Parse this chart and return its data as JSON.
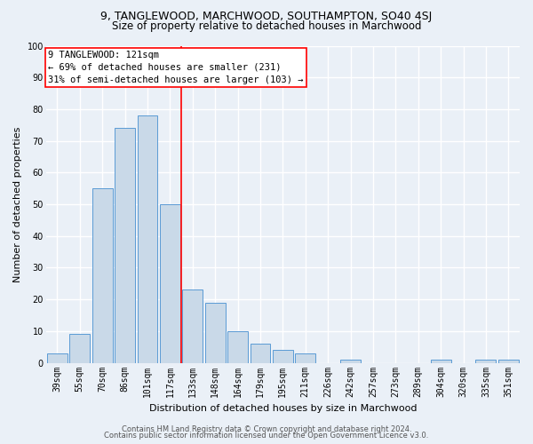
{
  "title1": "9, TANGLEWOOD, MARCHWOOD, SOUTHAMPTON, SO40 4SJ",
  "title2": "Size of property relative to detached houses in Marchwood",
  "xlabel": "Distribution of detached houses by size in Marchwood",
  "ylabel": "Number of detached properties",
  "categories": [
    "39sqm",
    "55sqm",
    "70sqm",
    "86sqm",
    "101sqm",
    "117sqm",
    "133sqm",
    "148sqm",
    "164sqm",
    "179sqm",
    "195sqm",
    "211sqm",
    "226sqm",
    "242sqm",
    "257sqm",
    "273sqm",
    "289sqm",
    "304sqm",
    "320sqm",
    "335sqm",
    "351sqm"
  ],
  "values": [
    3,
    9,
    55,
    74,
    78,
    50,
    23,
    19,
    10,
    6,
    4,
    3,
    0,
    1,
    0,
    0,
    0,
    1,
    0,
    1,
    1
  ],
  "bar_color": "#c9d9e8",
  "bar_edgecolor": "#5b9bd5",
  "annotation_text_line1": "9 TANGLEWOOD: 121sqm",
  "annotation_text_line2": "← 69% of detached houses are smaller (231)",
  "annotation_text_line3": "31% of semi-detached houses are larger (103) →",
  "annotation_box_color": "white",
  "annotation_box_edgecolor": "red",
  "vline_color": "red",
  "vline_x": 5.5,
  "ylim": [
    0,
    100
  ],
  "yticks": [
    0,
    10,
    20,
    30,
    40,
    50,
    60,
    70,
    80,
    90,
    100
  ],
  "footer1": "Contains HM Land Registry data © Crown copyright and database right 2024.",
  "footer2": "Contains public sector information licensed under the Open Government Licence v3.0.",
  "bg_color": "#eaf0f7",
  "grid_color": "#ffffff",
  "title_fontsize": 9,
  "subtitle_fontsize": 8.5,
  "axis_label_fontsize": 8,
  "tick_fontsize": 7,
  "annotation_fontsize": 7.5,
  "footer_fontsize": 6
}
